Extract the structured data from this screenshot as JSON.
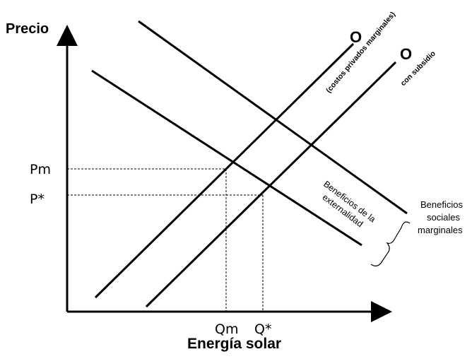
{
  "axes": {
    "y_label": "Precio",
    "x_label": "Energía solar"
  },
  "ticks": {
    "pm": "Pm",
    "pstar": "P*",
    "qm": "Qm",
    "qstar": "Q*"
  },
  "supply_private": {
    "letter": "O",
    "label": "(costos privados marginales)"
  },
  "supply_subsidy": {
    "letter": "O",
    "label": "con subsidio"
  },
  "externality": {
    "line1": "Beneficios de la",
    "line2": "externalidad"
  },
  "social_benefits": {
    "line1": "Beneficios",
    "line2": "sociales",
    "line3": "marginales"
  }
}
